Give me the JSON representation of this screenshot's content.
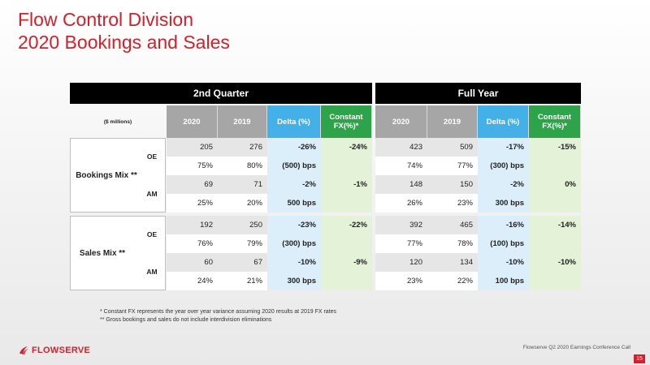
{
  "title": {
    "line1": "Flow Control Division",
    "line2": "2020 Bookings and Sales"
  },
  "table": {
    "group_q2": "2nd Quarter",
    "group_fy": "Full Year",
    "units_label": "($ millions)",
    "columns": [
      "2020",
      "2019",
      "Delta (%)",
      "Constant FX(%)*"
    ],
    "bookings_label": "Bookings Mix **",
    "sales_label": "Sales Mix **",
    "oe_label": "OE",
    "am_label": "AM",
    "rows": [
      {
        "q2": [
          "205",
          "276",
          "-26%",
          "-24%"
        ],
        "fy": [
          "423",
          "509",
          "-17%",
          "-15%"
        ]
      },
      {
        "q2": [
          "75%",
          "80%",
          "(500) bps",
          ""
        ],
        "fy": [
          "74%",
          "77%",
          "(300) bps",
          ""
        ]
      },
      {
        "q2": [
          "69",
          "71",
          "-2%",
          "-1%"
        ],
        "fy": [
          "148",
          "150",
          "-2%",
          "0%"
        ]
      },
      {
        "q2": [
          "25%",
          "20%",
          "500 bps",
          ""
        ],
        "fy": [
          "26%",
          "23%",
          "300 bps",
          ""
        ]
      },
      {
        "q2": [
          "192",
          "250",
          "-23%",
          "-22%"
        ],
        "fy": [
          "392",
          "465",
          "-16%",
          "-14%"
        ]
      },
      {
        "q2": [
          "76%",
          "79%",
          "(300) bps",
          ""
        ],
        "fy": [
          "77%",
          "78%",
          "(100) bps",
          ""
        ]
      },
      {
        "q2": [
          "60",
          "67",
          "-10%",
          "-9%"
        ],
        "fy": [
          "120",
          "134",
          "-10%",
          "-10%"
        ]
      },
      {
        "q2": [
          "24%",
          "21%",
          "300 bps",
          ""
        ],
        "fy": [
          "23%",
          "22%",
          "100 bps",
          ""
        ]
      }
    ]
  },
  "footnotes": {
    "note1": "* Constant FX represents the year over year variance assuming 2020 results at 2019 FX rates",
    "note2": "** Gross bookings and sales do not include interdivision eliminations"
  },
  "footer": {
    "logo_text": "FLOWSERVE",
    "conference": "Flowserve Q2 2020 Earnings Conference Call",
    "page": "15"
  },
  "colors": {
    "brand_red": "#d4202a",
    "delta_blue": "#44b0e8",
    "fx_green": "#2ea44a"
  }
}
